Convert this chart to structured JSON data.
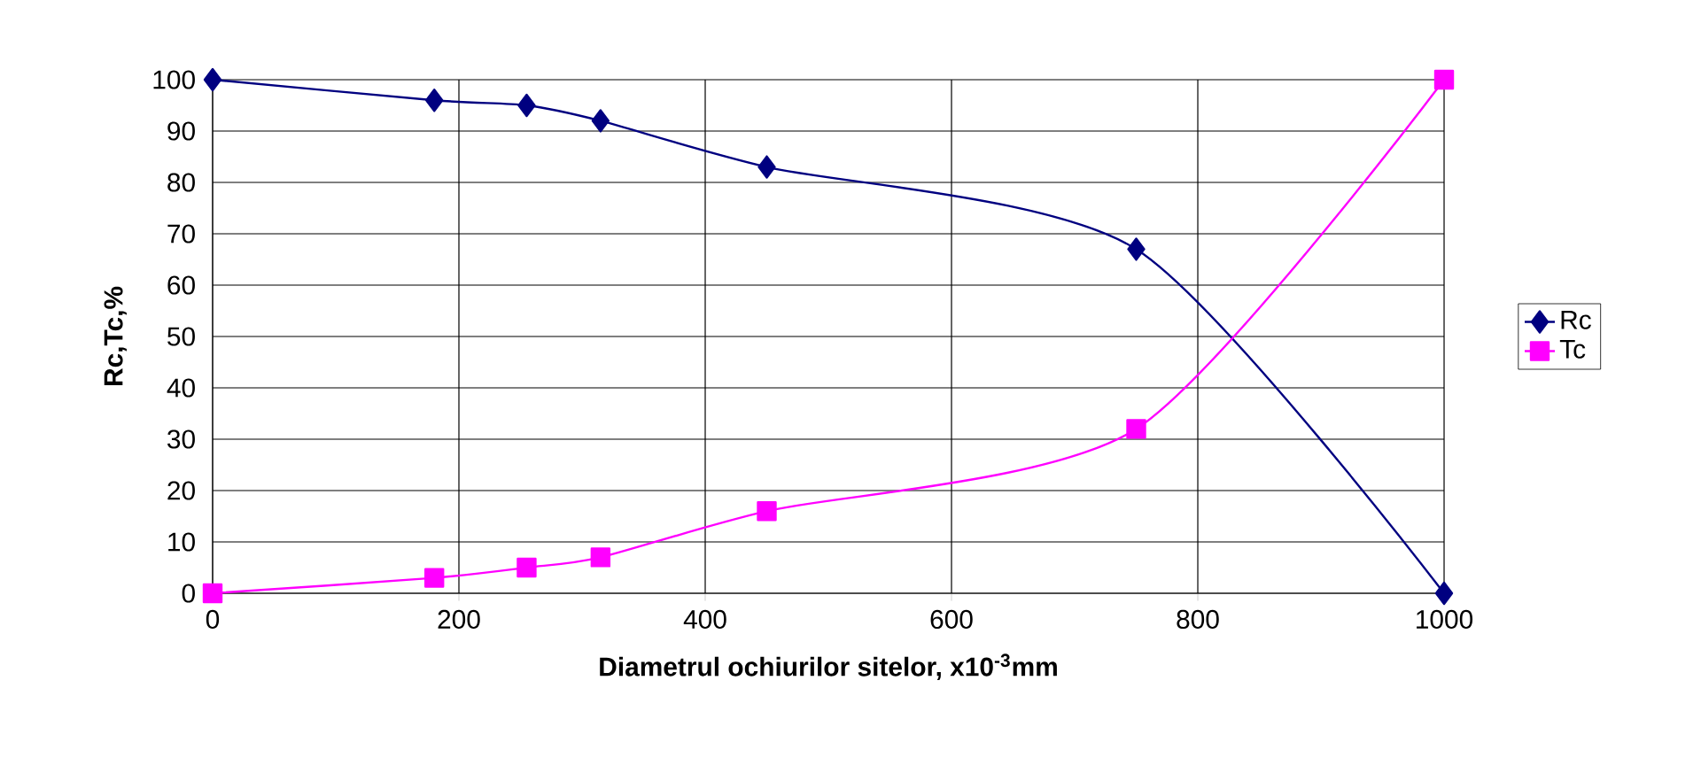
{
  "chart_data": {
    "type": "line",
    "xlabel": "Diametrul ochiurilor sitelor, x10$^{-3}$mm",
    "ylabel": "Rc,Tc,%",
    "x": [
      0,
      180,
      255,
      315,
      450,
      750,
      1000
    ],
    "series": [
      {
        "name": "Rc",
        "color": "#000080",
        "marker": "diamond",
        "values": [
          100,
          96,
          95,
          92,
          83,
          67,
          0
        ]
      },
      {
        "name": "Tc",
        "color": "#ff00ff",
        "marker": "square",
        "values": [
          0,
          3,
          5,
          7,
          16,
          32,
          100
        ]
      }
    ],
    "xlim": [
      0,
      1000
    ],
    "ylim": [
      0,
      100
    ],
    "xticks": [
      0,
      200,
      400,
      600,
      800,
      1000
    ],
    "yticks": [
      0,
      10,
      20,
      30,
      40,
      50,
      60,
      70,
      80,
      90,
      100
    ],
    "grid": true,
    "legend": "right",
    "line_style": "solid"
  }
}
